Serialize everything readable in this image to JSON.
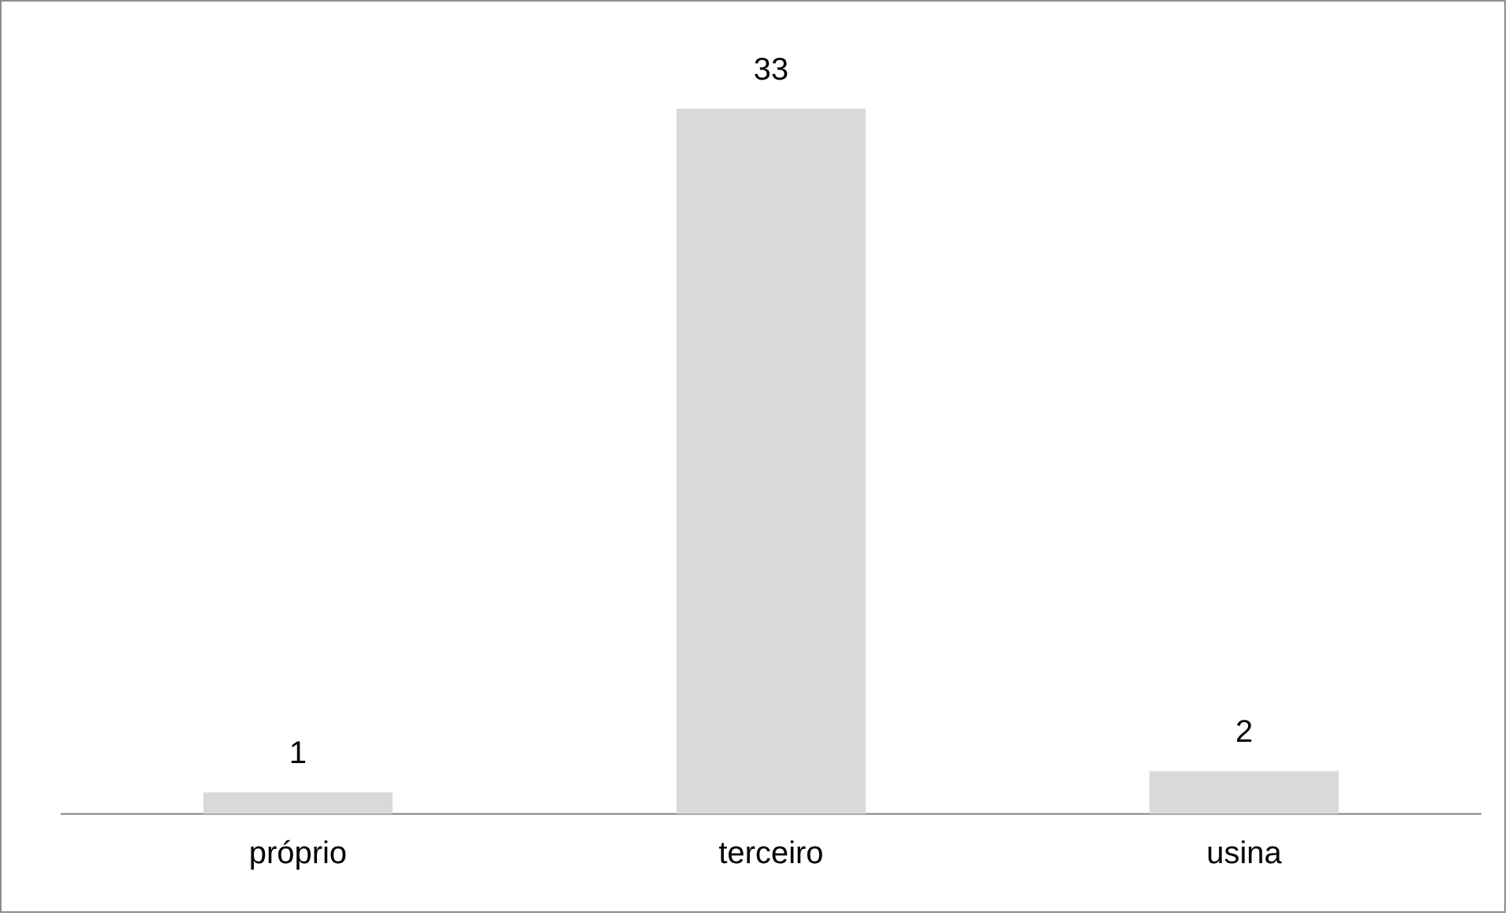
{
  "chart_data": {
    "type": "bar",
    "categories": [
      "próprio",
      "terceiro",
      "usina"
    ],
    "values": [
      1,
      33,
      2
    ],
    "color": "#d9d9d9",
    "data_labels": true
  }
}
